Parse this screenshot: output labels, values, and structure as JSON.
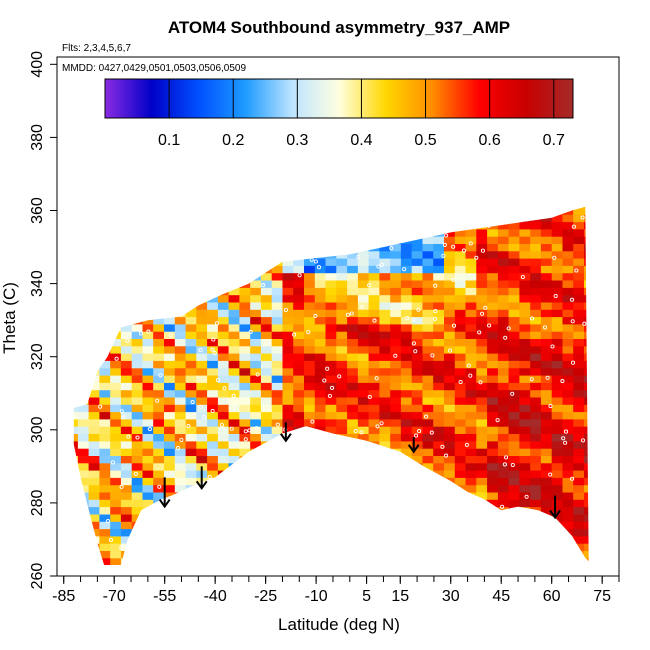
{
  "chart_data": {
    "type": "heatmap",
    "title": "ATOM4 Southbound asymmetry_937_AMP",
    "flights_label": "Flts: 2,3,4,5,6,7",
    "mmdd_label": "MMDD: 0427,0429,0501,0503,0506,0509",
    "xlabel": "Latitude (deg N)",
    "ylabel": "Theta (C)",
    "xlim": [
      -87,
      80
    ],
    "ylim": [
      260,
      402
    ],
    "x_ticks": [
      -85,
      -70,
      -55,
      -40,
      -25,
      -10,
      5,
      15,
      30,
      45,
      60,
      75
    ],
    "x_tick_labels": [
      "-85",
      "-70",
      "-55",
      "-40",
      "-25",
      "-10",
      "5",
      "15",
      "30",
      "45",
      "60",
      "75"
    ],
    "y_ticks": [
      260,
      280,
      300,
      320,
      340,
      360,
      380,
      400
    ],
    "y_tick_labels": [
      "260",
      "280",
      "300",
      "320",
      "340",
      "360",
      "380",
      "400"
    ],
    "colorbar": {
      "range": [
        0,
        0.73
      ],
      "ticks": [
        0.1,
        0.2,
        0.3,
        0.4,
        0.5,
        0.6,
        0.7
      ],
      "tick_labels": [
        "0.1",
        "0.2",
        "0.3",
        "0.4",
        "0.5",
        "0.6",
        "0.7"
      ],
      "colors": [
        "#8a2be2",
        "#0000c8",
        "#0050ff",
        "#1e9bff",
        "#bde4ff",
        "#ffffe0",
        "#ffd700",
        "#ff8c00",
        "#ff0000",
        "#c80000",
        "#a52a2a"
      ]
    },
    "upper_boundary": [
      [
        -82,
        306
      ],
      [
        -78,
        307
      ],
      [
        -75,
        316
      ],
      [
        -72,
        320
      ],
      [
        -68,
        328
      ],
      [
        -60,
        330
      ],
      [
        -50,
        331
      ],
      [
        -45,
        334
      ],
      [
        -38,
        337
      ],
      [
        -30,
        340
      ],
      [
        -25,
        343
      ],
      [
        -20,
        346
      ],
      [
        -10,
        347
      ],
      [
        0,
        348
      ],
      [
        10,
        350
      ],
      [
        20,
        352
      ],
      [
        30,
        354
      ],
      [
        45,
        356
      ],
      [
        60,
        358
      ],
      [
        66,
        360
      ],
      [
        70,
        361
      ]
    ],
    "lower_boundary": [
      [
        -82,
        296
      ],
      [
        -80,
        287
      ],
      [
        -77,
        276
      ],
      [
        -75,
        269
      ],
      [
        -73,
        263
      ],
      [
        -68,
        263
      ],
      [
        -66,
        270
      ],
      [
        -62,
        278
      ],
      [
        -56,
        281
      ],
      [
        -53,
        282
      ],
      [
        -46,
        285
      ],
      [
        -40,
        287
      ],
      [
        -30,
        294
      ],
      [
        -20,
        299
      ],
      [
        -13,
        301
      ],
      [
        -5,
        299
      ],
      [
        5,
        297
      ],
      [
        15,
        294
      ],
      [
        22,
        290
      ],
      [
        30,
        286
      ],
      [
        35,
        283
      ],
      [
        40,
        281
      ],
      [
        45,
        278
      ],
      [
        50,
        279
      ],
      [
        56,
        278
      ],
      [
        61,
        276
      ],
      [
        66,
        271
      ],
      [
        70,
        265
      ],
      [
        71,
        264
      ]
    ],
    "right_edge_top": [
      71,
      361
    ],
    "arrows": [
      {
        "lat": -55,
        "theta_top": 287,
        "theta_bottom": 279
      },
      {
        "lat": -44,
        "theta_top": 290,
        "theta_bottom": 284
      },
      {
        "lat": -19,
        "theta_top": 302,
        "theta_bottom": 297
      },
      {
        "lat": 19,
        "theta_top": 298,
        "theta_bottom": 294
      },
      {
        "lat": 61,
        "theta_top": 282,
        "theta_bottom": 276
      }
    ]
  }
}
